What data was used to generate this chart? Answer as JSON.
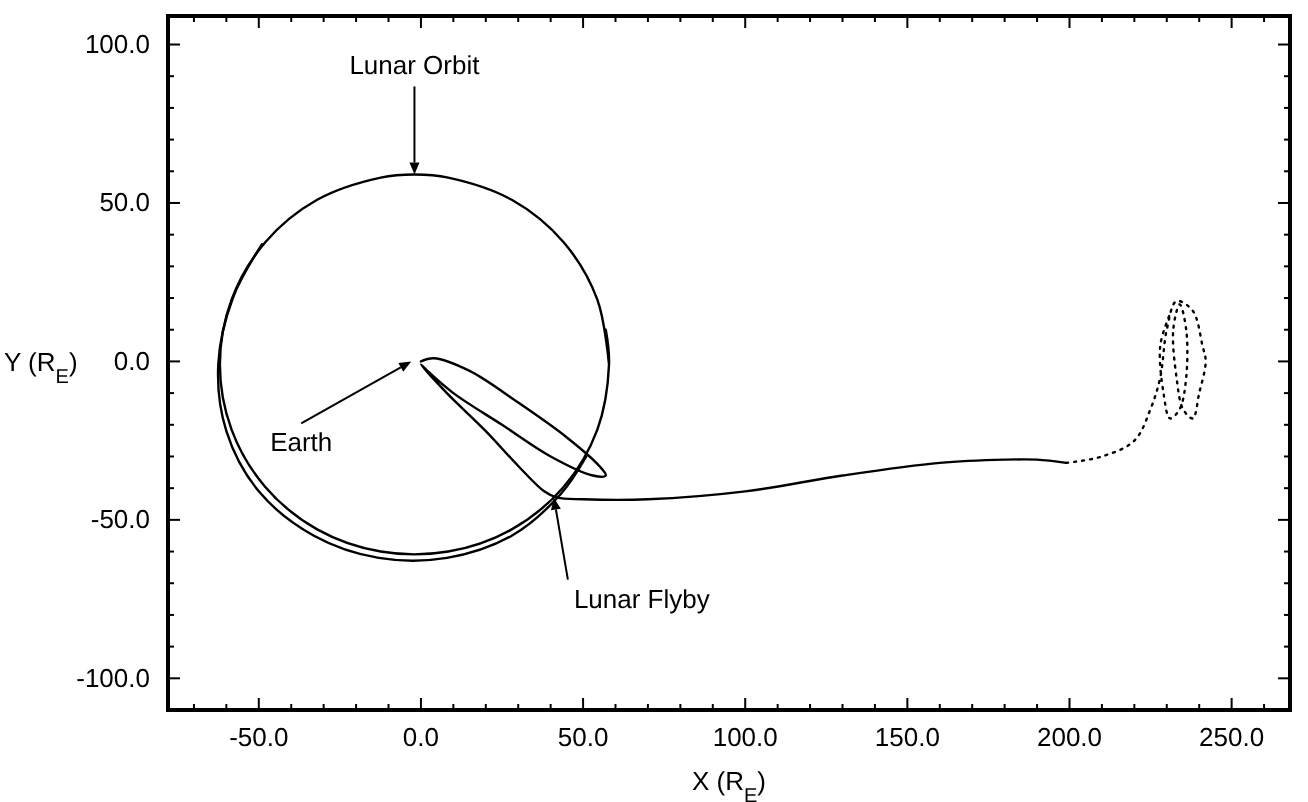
{
  "chart_data": {
    "type": "line",
    "xlabel": "X (R$_{E}$)",
    "ylabel": "Y (R$_{E}$)",
    "xlim": [
      -78,
      268
    ],
    "ylim": [
      -110,
      109
    ],
    "xticks": [
      {
        "value": -50,
        "label": "-50.0"
      },
      {
        "value": 0,
        "label": "0.0"
      },
      {
        "value": 50,
        "label": "50.0"
      },
      {
        "value": 100,
        "label": "100.0"
      },
      {
        "value": 150,
        "label": "150.0"
      },
      {
        "value": 200,
        "label": "200.0"
      },
      {
        "value": 250,
        "label": "250.0"
      },
      {
        "value": -70,
        "label": null
      },
      {
        "value": -60,
        "label": null
      },
      {
        "value": -40,
        "label": null
      },
      {
        "value": -30,
        "label": null
      },
      {
        "value": -20,
        "label": null
      },
      {
        "value": -10,
        "label": null
      },
      {
        "value": 10,
        "label": null
      },
      {
        "value": 20,
        "label": null
      },
      {
        "value": 30,
        "label": null
      },
      {
        "value": 40,
        "label": null
      },
      {
        "value": 60,
        "label": null
      },
      {
        "value": 70,
        "label": null
      },
      {
        "value": 80,
        "label": null
      },
      {
        "value": 90,
        "label": null
      },
      {
        "value": 110,
        "label": null
      },
      {
        "value": 120,
        "label": null
      },
      {
        "value": 130,
        "label": null
      },
      {
        "value": 140,
        "label": null
      },
      {
        "value": 160,
        "label": null
      },
      {
        "value": 170,
        "label": null
      },
      {
        "value": 180,
        "label": null
      },
      {
        "value": 190,
        "label": null
      },
      {
        "value": 210,
        "label": null
      },
      {
        "value": 220,
        "label": null
      },
      {
        "value": 230,
        "label": null
      },
      {
        "value": 240,
        "label": null
      },
      {
        "value": 260,
        "label": null
      }
    ],
    "yticks": [
      {
        "value": -100,
        "label": "-100.0"
      },
      {
        "value": -50,
        "label": "-50.0"
      },
      {
        "value": 0,
        "label": "0.0"
      },
      {
        "value": 50,
        "label": "50.0"
      },
      {
        "value": 100,
        "label": "100.0"
      },
      {
        "value": -90,
        "label": null
      },
      {
        "value": -80,
        "label": null
      },
      {
        "value": -70,
        "label": null
      },
      {
        "value": -60,
        "label": null
      },
      {
        "value": -40,
        "label": null
      },
      {
        "value": -30,
        "label": null
      },
      {
        "value": -20,
        "label": null
      },
      {
        "value": -10,
        "label": null
      },
      {
        "value": 10,
        "label": null
      },
      {
        "value": 20,
        "label": null
      },
      {
        "value": 30,
        "label": null
      },
      {
        "value": 40,
        "label": null
      },
      {
        "value": 60,
        "label": null
      },
      {
        "value": 70,
        "label": null
      },
      {
        "value": 80,
        "label": null
      },
      {
        "value": 90,
        "label": null
      }
    ],
    "grid": false,
    "marker": "none",
    "series": [
      {
        "color": "#000000",
        "line_style": "solid",
        "x": [
          58,
          54.4,
          44,
          28,
          8.4,
          -2,
          -12.4,
          -32,
          -48,
          -58.4,
          -62,
          -58.4,
          -48,
          -32,
          -12.4,
          8.4,
          28,
          44,
          54.4,
          58,
          57
        ],
        "values": [
          -1,
          19.5,
          37.6,
          51,
          58,
          59,
          58,
          51,
          37.6,
          19.5,
          -1,
          -21.5,
          -39.6,
          -53,
          -60,
          -60,
          -53,
          -39.6,
          -21.5,
          -1,
          10
        ]
      },
      {
        "color": "#000000",
        "line_style": "solid",
        "x": [
          -49,
          -58,
          -62.5,
          -60,
          -50,
          -33,
          -13,
          8,
          28,
          43,
          51
        ],
        "values": [
          37,
          20,
          -1,
          -22,
          -41,
          -55,
          -62,
          -62,
          -55,
          -42,
          -30
        ]
      },
      {
        "color": "#000000",
        "line_style": "solid",
        "x": [
          0,
          4,
          15,
          30,
          45,
          55,
          57,
          53,
          40,
          25,
          10,
          2,
          0,
          8,
          20,
          30,
          38,
          42,
          50,
          70,
          100,
          130,
          160,
          180,
          190,
          199
        ],
        "values": [
          0,
          1,
          -3,
          -13,
          -24,
          -33,
          -36,
          -36,
          -30,
          -20,
          -10,
          -3,
          -1,
          -10,
          -22,
          -33,
          -41,
          -43,
          -43.5,
          -43.5,
          -41,
          -36,
          -32,
          -31,
          -31,
          -32
        ]
      },
      {
        "color": "#000000",
        "line_style": "dotted",
        "x": [
          199,
          210,
          220,
          225,
          228,
          230,
          233,
          238,
          241,
          242,
          240,
          238,
          235,
          233,
          232,
          234,
          236,
          236,
          234,
          231,
          229,
          228,
          231
        ],
        "values": [
          -32,
          -30,
          -25,
          -15,
          -5,
          10,
          19,
          16,
          5,
          0,
          -10,
          -18,
          -15,
          -5,
          10,
          18,
          10,
          -5,
          -15,
          -18,
          -10,
          5,
          15
        ]
      }
    ],
    "annotations": [
      {
        "text": "Lunar Orbit",
        "x": -2,
        "y": 59
      },
      {
        "text": "Earth",
        "x": -3,
        "y": 0
      },
      {
        "text": "Lunar Flyby",
        "x": 41,
        "y": -43
      }
    ]
  }
}
